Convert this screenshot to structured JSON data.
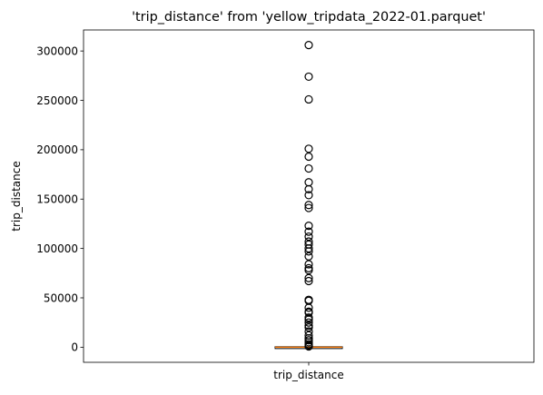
{
  "chart_data": {
    "type": "box",
    "title": "'trip_distance' from 'yellow_tripdata_2022-01.parquet'",
    "xlabel": "",
    "ylabel": "trip_distance",
    "categories": [
      "trip_distance"
    ],
    "ylim": [
      -15300,
      321300
    ],
    "yticks": [
      0,
      50000,
      100000,
      150000,
      200000,
      250000,
      300000
    ],
    "ytick_labels": [
      "0",
      "50000",
      "100000",
      "150000",
      "200000",
      "250000",
      "300000"
    ],
    "box": {
      "min": 0,
      "q1": 1.04,
      "median": 1.74,
      "q3": 3.13,
      "max": 6.26
    },
    "colors": {
      "box": "#000000",
      "median": "#ff7f0e",
      "flier_edge": "#000000"
    },
    "outliers": [
      306000,
      274000,
      251000,
      201000,
      193000,
      181000,
      167000,
      160000,
      154000,
      144000,
      141000,
      123000,
      117000,
      112000,
      107000,
      104000,
      100000,
      97000,
      92000,
      84000,
      80000,
      78000,
      70000,
      67000,
      48000,
      47000,
      40000,
      36000,
      35000,
      30000,
      28000,
      25000,
      22000,
      20000,
      16000,
      12000,
      9000,
      7000,
      5000,
      3000,
      1500,
      800
    ]
  }
}
